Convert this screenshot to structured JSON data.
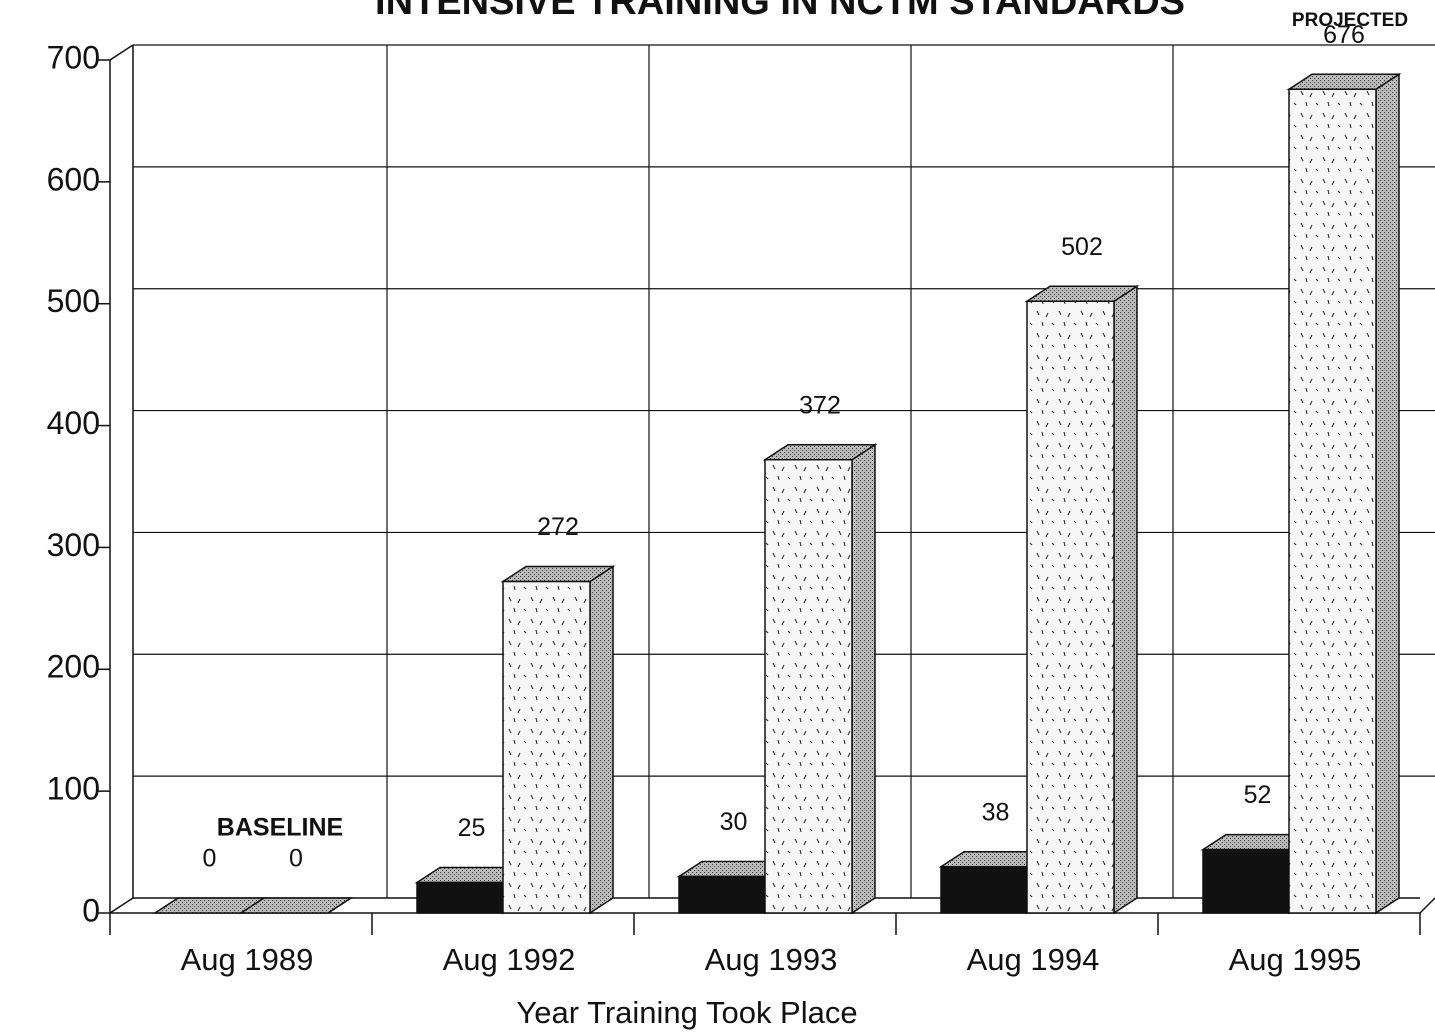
{
  "chart_data": {
    "type": "bar3d",
    "title": "INTENSIVE TRAINING IN NCTM STANDARDS",
    "x_label": "Year Training Took Place",
    "annotations": [
      "BASELINE",
      "PROJECTED"
    ],
    "categories": [
      "Aug 1989",
      "Aug 1992",
      "Aug 1993",
      "Aug 1994",
      "Aug 1995"
    ],
    "series": [
      {
        "color": "#111111",
        "values": [
          0,
          25,
          30,
          38,
          52
        ]
      },
      {
        "color": "#f6f6f6",
        "values": [
          0,
          272,
          372,
          502,
          676
        ]
      }
    ],
    "ylim": [
      0,
      700
    ],
    "yticks": [
      0,
      100,
      200,
      300,
      400,
      500,
      600,
      700
    ],
    "grid": true
  }
}
